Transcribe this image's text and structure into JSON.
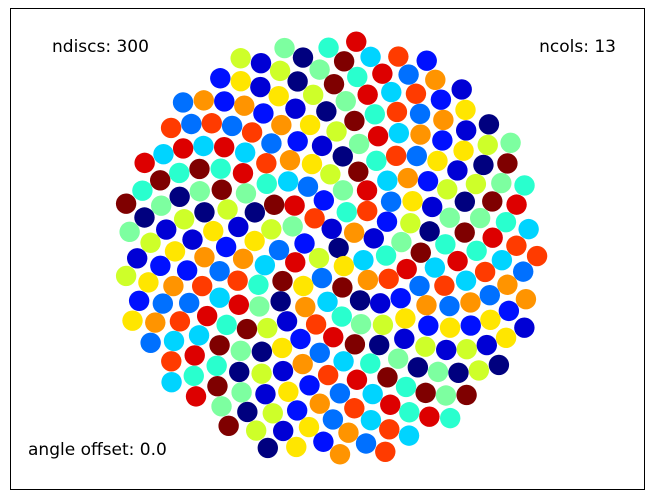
{
  "chart_data": {
    "type": "scatter",
    "title": "",
    "xlabel": "",
    "ylabel": "",
    "grid": false,
    "legend": "none",
    "annotations": {
      "ndiscs": "ndiscs: 300",
      "ncols": "ncols: 13",
      "angle_offset": "angle offset: 0.0"
    },
    "ndiscs": 300,
    "ncols": 13,
    "angle_offset": 0.0,
    "layout": "phyllotaxis-spiral",
    "colormap": "jet",
    "palette": [
      "#00007f",
      "#0000d5",
      "#0010ff",
      "#0070ff",
      "#00d4ff",
      "#29ffce",
      "#7dffa0",
      "#ceff29",
      "#ffe600",
      "#ff9400",
      "#ff3b00",
      "#dd0000",
      "#7f0000"
    ]
  }
}
